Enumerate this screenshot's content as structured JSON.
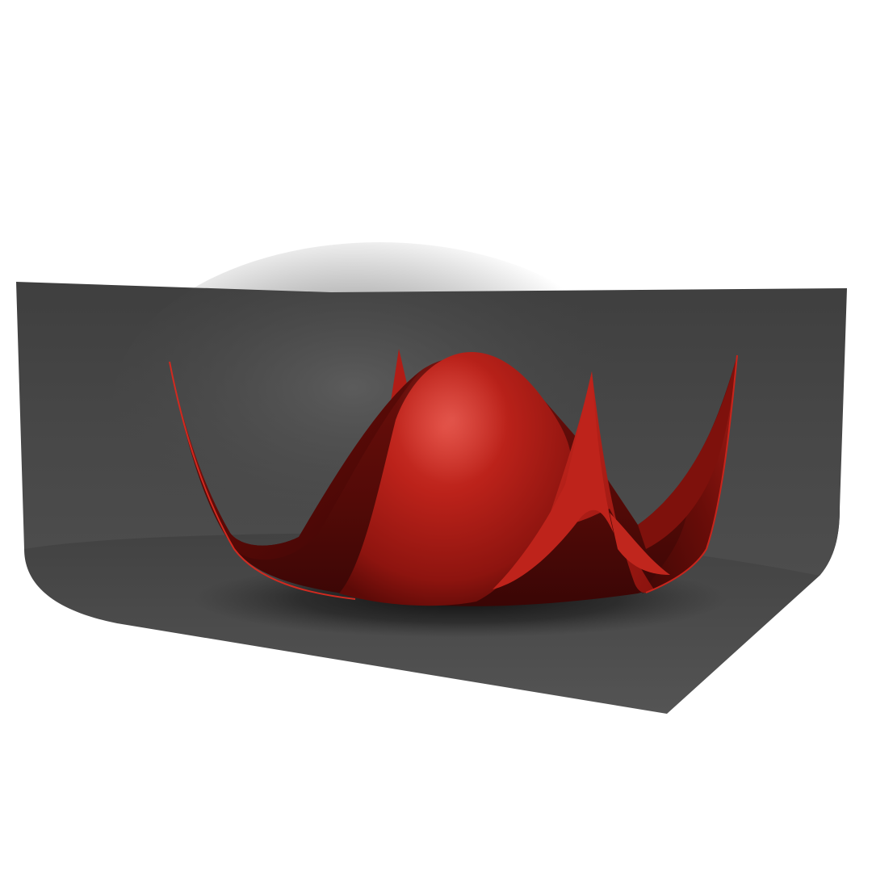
{
  "scene": {
    "background_color": "#ffffff",
    "backdrop_color": "#464646",
    "surface_color": "#b01e18",
    "surface_shadow_color": "#3a0807"
  }
}
